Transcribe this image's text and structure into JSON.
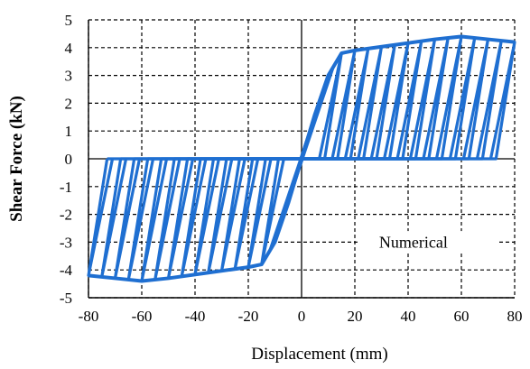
{
  "chart_data": {
    "type": "line",
    "title": "",
    "xlabel": "Displacement (mm)",
    "ylabel": "Shear Force (kN)",
    "xlim": [
      -80,
      80
    ],
    "ylim": [
      -5,
      5
    ],
    "x_ticks": [
      -80,
      -60,
      -40,
      -20,
      0,
      20,
      40,
      60,
      80
    ],
    "y_ticks": [
      -5,
      -4,
      -3,
      -2,
      -1,
      0,
      1,
      2,
      3,
      4,
      5
    ],
    "grid": true,
    "grid_style": "dashed",
    "legend": {
      "label": "Numerical",
      "position": "bottom-right"
    },
    "color": "#1f6fd1",
    "series": [
      {
        "name": "Numerical",
        "envelope_positive": {
          "x": [
            0,
            5,
            10,
            15,
            20,
            35,
            50,
            60,
            70,
            80
          ],
          "y": [
            0,
            1.6,
            3.0,
            3.8,
            3.9,
            4.1,
            4.3,
            4.4,
            4.3,
            4.2
          ]
        },
        "envelope_negative": {
          "x": [
            0,
            -5,
            -10,
            -15,
            -20,
            -35,
            -50,
            -60,
            -70,
            -80
          ],
          "y": [
            0,
            -1.6,
            -3.0,
            -3.8,
            -3.9,
            -4.1,
            -4.3,
            -4.4,
            -4.3,
            -4.2
          ]
        },
        "cycle_peaks_displacement": [
          15,
          20,
          25,
          30,
          35,
          40,
          45,
          50,
          55,
          60,
          65,
          70,
          75,
          80
        ],
        "unloading_stiffness_kN_per_mm": 0.6,
        "reloading_slope_kN_per_mm": 0.25
      }
    ]
  }
}
